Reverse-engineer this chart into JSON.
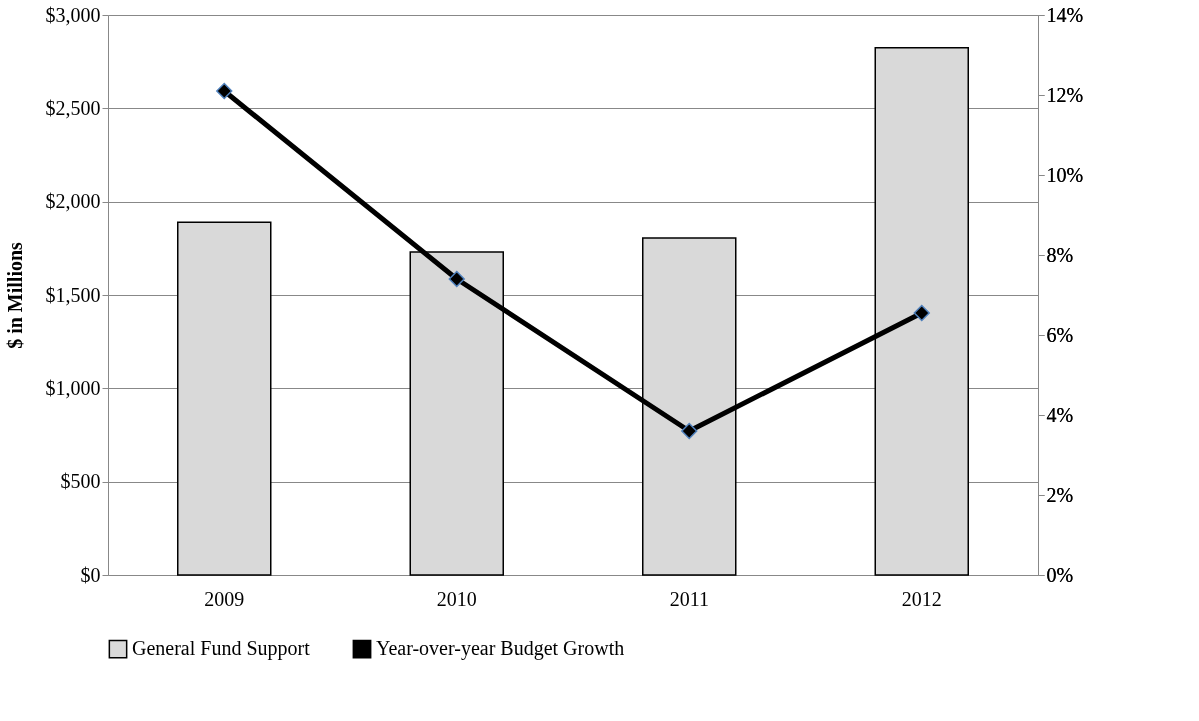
{
  "chart_data": {
    "type": "bar",
    "ylabel": "$ in Millions",
    "categories": [
      "2009",
      "2010",
      "2011",
      "2012"
    ],
    "series": [
      {
        "name": "General Fund Support",
        "color": "#d9d9d9",
        "values": [
          1890,
          1730,
          1805,
          2825
        ]
      },
      {
        "name": "Year-over-year Budget Growth",
        "type": "line",
        "axis": "y2",
        "color": "#000000",
        "marker": "diamond",
        "values": [
          12.1,
          7.4,
          3.6,
          6.55
        ]
      }
    ],
    "ylim": [
      0,
      3000
    ],
    "yticks": [
      {
        "value": 0,
        "label": "$0"
      },
      {
        "value": 500,
        "label": "$500"
      },
      {
        "value": 1000,
        "label": "$1,000"
      },
      {
        "value": 1500,
        "label": "$1,500"
      },
      {
        "value": 2000,
        "label": "$2,000"
      },
      {
        "value": 2500,
        "label": "$2,500"
      },
      {
        "value": 3000,
        "label": "$3,000"
      }
    ],
    "y2lim": [
      0,
      14
    ],
    "y2ticks": [
      {
        "value": 0,
        "label": "0%"
      },
      {
        "value": 2,
        "label": "2%"
      },
      {
        "value": 4,
        "label": "4%"
      },
      {
        "value": 6,
        "label": "6%"
      },
      {
        "value": 8,
        "label": "8%"
      },
      {
        "value": 10,
        "label": "10%"
      },
      {
        "value": 12,
        "label": "12%"
      },
      {
        "value": 14,
        "label": "14%"
      }
    ],
    "grid": "y",
    "legend": "bottom"
  }
}
